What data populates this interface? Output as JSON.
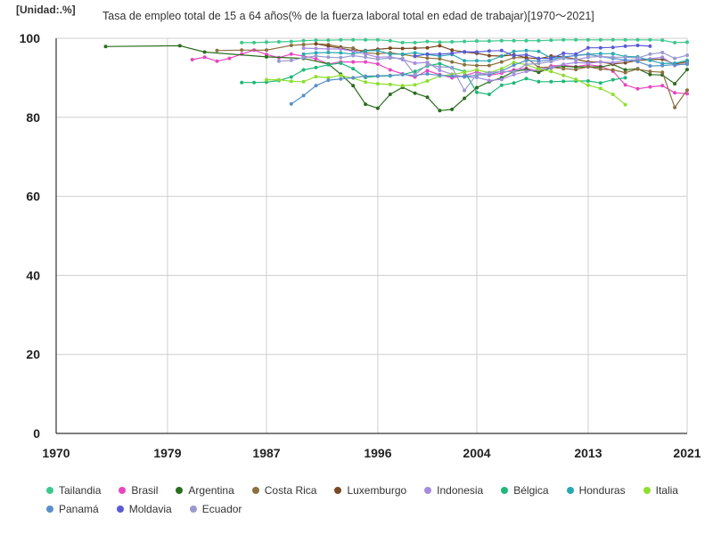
{
  "chart_data": {
    "type": "line",
    "title": "Tasa de empleo total de 15 a 64 años(% de la fuerza laboral total en edad de trabajar)[1970～2021]",
    "unit_label": "[Unidad:.%]",
    "xlim": [
      1970,
      2021
    ],
    "ylim": [
      0,
      100
    ],
    "x_ticks": [
      "1970",
      "1979",
      "1987",
      "1996",
      "2004",
      "2013",
      "2021"
    ],
    "y_ticks": [
      "0",
      "20",
      "40",
      "60",
      "80",
      "100"
    ],
    "grid": true,
    "legend_position": "bottom",
    "series": [
      {
        "name": "Tailandia",
        "color": "#3cc88c",
        "x": [
          1985,
          1986,
          1987,
          1988,
          1989,
          1990,
          1991,
          1992,
          1993,
          1994,
          1995,
          1996,
          1997,
          1998,
          1999,
          2000,
          2001,
          2002,
          2003,
          2004,
          2005,
          2006,
          2007,
          2008,
          2009,
          2010,
          2011,
          2012,
          2013,
          2014,
          2015,
          2016,
          2017,
          2018,
          2019,
          2020,
          2021
        ],
        "y": [
          98.9,
          98.9,
          99.0,
          99.1,
          99.2,
          99.4,
          99.5,
          99.5,
          99.6,
          99.6,
          99.6,
          99.6,
          99.4,
          98.9,
          98.9,
          99.2,
          99.0,
          99.1,
          99.2,
          99.3,
          99.3,
          99.4,
          99.4,
          99.4,
          99.4,
          99.5,
          99.6,
          99.6,
          99.6,
          99.6,
          99.6,
          99.6,
          99.6,
          99.6,
          99.5,
          98.9,
          99.0
        ]
      },
      {
        "name": "Brasil",
        "color": "#e846c0",
        "x": [
          1981,
          1982,
          1983,
          1984,
          1985,
          1986,
          1987,
          1988,
          1989,
          1990,
          1991,
          1992,
          1993,
          1994,
          1995,
          1996,
          1997,
          1998,
          1999,
          2000,
          2001,
          2002,
          2003,
          2004,
          2005,
          2006,
          2007,
          2008,
          2009,
          2010,
          2011,
          2012,
          2013,
          2014,
          2015,
          2016,
          2017,
          2018,
          2019,
          2020,
          2021
        ],
        "y": [
          94.6,
          95.2,
          94.2,
          94.9,
          96.0,
          97.0,
          95.9,
          95.1,
          96.0,
          95.5,
          94.8,
          93.5,
          94.0,
          94.0,
          94.0,
          93.5,
          92.0,
          91.0,
          90.2,
          91.8,
          90.8,
          90.0,
          90.5,
          91.5,
          90.6,
          91.2,
          92.0,
          92.4,
          91.6,
          93.0,
          93.2,
          92.8,
          93.3,
          92.9,
          91.7,
          88.2,
          87.2,
          87.7,
          88.0,
          86.2,
          86.0
        ]
      },
      {
        "name": "Argentina",
        "color": "#2a6e1e",
        "x": [
          1974,
          1980,
          1982,
          1987,
          1990,
          1992,
          1993,
          1994,
          1995,
          1996,
          1997,
          1998,
          1999,
          2000,
          2001,
          2002,
          2003,
          2004,
          2005,
          2006,
          2007,
          2008,
          2009,
          2010,
          2011,
          2012,
          2013,
          2014,
          2015,
          2016,
          2017,
          2018,
          2019,
          2020,
          2021
        ],
        "y": [
          97.9,
          98.1,
          96.5,
          95.3,
          94.9,
          93.5,
          90.9,
          88.0,
          83.3,
          82.3,
          85.8,
          87.6,
          86.1,
          85.1,
          81.7,
          82.0,
          84.8,
          87.5,
          89.0,
          90.0,
          91.6,
          92.1,
          91.4,
          92.5,
          92.9,
          92.7,
          92.8,
          92.7,
          93.4,
          92.0,
          92.3,
          90.8,
          90.7,
          88.5,
          92.1
        ]
      },
      {
        "name": "Costa Rica",
        "color": "#8c7040",
        "x": [
          1983,
          1985,
          1987,
          1989,
          1990,
          1991,
          1992,
          1993,
          1994,
          1995,
          1996,
          1997,
          1998,
          1999,
          2000,
          2001,
          2002,
          2003,
          2004,
          2005,
          2006,
          2007,
          2008,
          2009,
          2010,
          2011,
          2012,
          2013,
          2014,
          2015,
          2016,
          2017,
          2018,
          2019,
          2020,
          2021
        ],
        "y": [
          96.9,
          97.0,
          97.0,
          98.2,
          98.4,
          98.6,
          98.4,
          97.8,
          97.5,
          96.3,
          96.1,
          96.3,
          95.9,
          95.4,
          95.0,
          94.8,
          94.0,
          93.3,
          93.1,
          93.1,
          94.0,
          95.1,
          95.1,
          92.6,
          92.7,
          92.3,
          92.1,
          92.8,
          92.2,
          92.0,
          91.3,
          92.2,
          91.6,
          91.4,
          82.5,
          86.9
        ]
      },
      {
        "name": "Luxemburgo",
        "color": "#7a4a22",
        "x": [
          1991,
          1992,
          1993,
          1994,
          1995,
          1996,
          1997,
          1998,
          1999,
          2000,
          2001,
          2002,
          2003,
          2004,
          2005,
          2006,
          2007,
          2008,
          2009,
          2010,
          2011,
          2012,
          2013,
          2014,
          2015,
          2016,
          2017,
          2018,
          2019,
          2020,
          2021
        ],
        "y": [
          98.6,
          98.0,
          97.5,
          96.9,
          96.9,
          97.2,
          97.5,
          97.4,
          97.5,
          97.6,
          98.1,
          97.0,
          96.5,
          96.2,
          95.6,
          95.5,
          95.8,
          95.1,
          94.8,
          95.5,
          95.3,
          94.7,
          94.0,
          94.0,
          93.5,
          93.8,
          94.4,
          94.6,
          94.7,
          93.5,
          94.0
        ]
      },
      {
        "name": "Indonesia",
        "color": "#a68ae0",
        "x": [
          1990,
          1991,
          1992,
          1993,
          1994,
          1995,
          1996,
          1997,
          1998,
          1999,
          2000,
          2001,
          2002,
          2003,
          2004,
          2005,
          2006,
          2007,
          2008,
          2009,
          2010,
          2011,
          2012,
          2013,
          2014,
          2015,
          2016,
          2017,
          2018,
          2019,
          2020,
          2021
        ],
        "y": [
          97.5,
          97.4,
          97.3,
          97.3,
          96.7,
          96.0,
          95.2,
          95.3,
          94.6,
          93.7,
          93.9,
          91.9,
          90.9,
          90.2,
          90.1,
          89.3,
          89.6,
          90.8,
          91.6,
          92.1,
          92.6,
          93.4,
          93.9,
          93.7,
          94.0,
          93.8,
          94.4,
          94.6,
          94.8,
          95.2,
          93.1,
          93.6
        ]
      },
      {
        "name": "Bélgica",
        "color": "#1fb87a",
        "x": [
          1985,
          1986,
          1987,
          1988,
          1989,
          1990,
          1991,
          1992,
          1993,
          1994,
          1995,
          1996,
          1997,
          1998,
          1999,
          2000,
          2001,
          2002,
          2003,
          2004,
          2005,
          2006,
          2007,
          2008,
          2009,
          2010,
          2011,
          2012,
          2013,
          2014,
          2015,
          2016
        ],
        "y": [
          88.8,
          88.8,
          88.9,
          89.3,
          90.2,
          92.0,
          92.6,
          93.3,
          93.7,
          92.3,
          90.1,
          90.4,
          90.5,
          90.8,
          91.6,
          93.0,
          93.6,
          92.5,
          91.6,
          86.3,
          85.8,
          88.1,
          88.7,
          89.8,
          89.0,
          89.0,
          89.1,
          89.2,
          89.2,
          88.7,
          89.5,
          90.0
        ]
      },
      {
        "name": "Honduras",
        "color": "#2aa8b0",
        "x": [
          1990,
          1991,
          1992,
          1993,
          1994,
          1995,
          1996,
          1997,
          1998,
          1999,
          2000,
          2001,
          2002,
          2003,
          2004,
          2005,
          2006,
          2007,
          2008,
          2009,
          2010,
          2011,
          2012,
          2013,
          2014,
          2015,
          2016,
          2017,
          2018,
          2019,
          2020,
          2021
        ],
        "y": [
          96.0,
          96.3,
          96.4,
          96.3,
          96.0,
          96.8,
          96.9,
          96.0,
          96.0,
          96.3,
          95.9,
          95.5,
          95.9,
          94.3,
          94.3,
          94.3,
          95.5,
          96.7,
          96.9,
          96.7,
          95.0,
          95.2,
          95.7,
          96.0,
          96.1,
          96.1,
          95.4,
          95.3,
          94.4,
          93.6,
          93.7,
          94.4
        ]
      },
      {
        "name": "Italia",
        "color": "#8ede2e",
        "x": [
          1987,
          1988,
          1989,
          1990,
          1991,
          1992,
          1993,
          1994,
          1995,
          1996,
          1997,
          1998,
          1999,
          2000,
          2001,
          2002,
          2003,
          2004,
          2005,
          2006,
          2007,
          2008,
          2009,
          2010,
          2011,
          2012,
          2013,
          2014,
          2015,
          2016
        ],
        "y": [
          89.5,
          89.5,
          89.1,
          89.0,
          90.3,
          90.0,
          90.6,
          89.9,
          88.9,
          88.5,
          88.3,
          88.0,
          88.2,
          89.2,
          90.5,
          90.8,
          91.4,
          92.0,
          91.3,
          92.3,
          93.9,
          93.3,
          92.2,
          91.6,
          90.6,
          89.6,
          88.1,
          87.3,
          85.8,
          83.2
        ]
      },
      {
        "name": "Panamá",
        "color": "#5a90c8",
        "x": [
          1989,
          1990,
          1991,
          1992,
          1993,
          1994,
          1995,
          1996,
          1997,
          1998,
          1999,
          2000,
          2001,
          2002,
          2003,
          2004,
          2005,
          2006,
          2007,
          2008,
          2009,
          2010,
          2011,
          2012,
          2013,
          2014,
          2015,
          2016,
          2017,
          2018,
          2019,
          2020,
          2021
        ],
        "y": [
          83.4,
          85.5,
          88.0,
          89.4,
          89.7,
          90.0,
          90.4,
          90.5,
          90.6,
          90.8,
          90.6,
          91.0,
          90.6,
          90.4,
          90.3,
          90.7,
          90.8,
          91.7,
          93.2,
          94.4,
          94.2,
          94.5,
          95.3,
          95.6,
          95.9,
          95.4,
          94.9,
          94.5,
          94.1,
          93.0,
          93.1,
          93.3,
          93.4
        ]
      },
      {
        "name": "Moldavia",
        "color": "#5a5ad8",
        "x": [
          1999,
          2000,
          2001,
          2002,
          2003,
          2004,
          2005,
          2006,
          2007,
          2008,
          2009,
          2010,
          2011,
          2012,
          2013,
          2014,
          2015,
          2016,
          2017,
          2018
        ],
        "y": [
          95.5,
          96.0,
          96.0,
          96.2,
          96.6,
          96.5,
          96.8,
          96.9,
          95.6,
          95.8,
          94.9,
          94.9,
          96.2,
          96.0,
          97.6,
          97.6,
          97.7,
          98.0,
          98.2,
          98.0
        ]
      },
      {
        "name": "Ecuador",
        "color": "#9a9ad0",
        "x": [
          1988,
          1989,
          1990,
          1991,
          1992,
          1993,
          1994,
          1995,
          1996,
          1997,
          1998,
          1999,
          2000,
          2001,
          2002,
          2003,
          2004,
          2005,
          2006,
          2007,
          2008,
          2009,
          2010,
          2011,
          2012,
          2013,
          2014,
          2015,
          2016,
          2017,
          2018,
          2019,
          2020,
          2021
        ],
        "y": [
          94.2,
          94.4,
          95.1,
          95.5,
          95.2,
          95.1,
          95.6,
          95.2,
          94.7,
          95.0,
          94.9,
          90.8,
          93.3,
          92.8,
          92.6,
          86.8,
          90.9,
          91.3,
          91.6,
          91.5,
          93.4,
          93.6,
          94.1,
          94.9,
          94.6,
          95.2,
          95.4,
          95.2,
          95.2,
          95.0,
          96.0,
          96.4,
          94.9,
          95.7
        ]
      }
    ]
  }
}
